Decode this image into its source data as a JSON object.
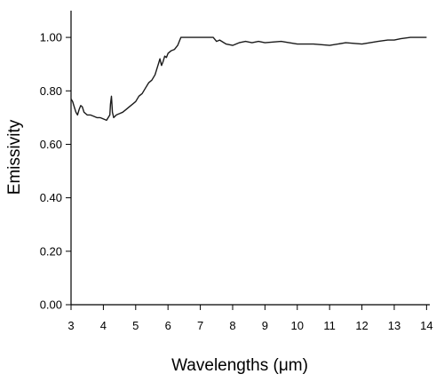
{
  "chart_data": {
    "type": "line",
    "title": "",
    "xlabel": "Wavelengths (μm)",
    "ylabel": "Emissivity",
    "xlim": [
      3,
      14.1
    ],
    "ylim": [
      0,
      1.1
    ],
    "x_ticks": [
      3,
      4,
      5,
      6,
      7,
      8,
      9,
      10,
      11,
      12,
      13,
      14
    ],
    "x_tick_labels": [
      "3",
      "4",
      "5",
      "6",
      "7",
      "8",
      "9",
      "10",
      "11",
      "12",
      "13",
      "14"
    ],
    "y_ticks": [
      0,
      0.2,
      0.4,
      0.6,
      0.8,
      1.0
    ],
    "y_tick_labels": [
      "0.00",
      "0.20",
      "0.40",
      "0.60",
      "0.80",
      "1.00"
    ],
    "grid": false,
    "legend": "none",
    "line_color": "#1a1a1a",
    "series": [
      {
        "x": [
          3.0,
          3.05,
          3.1,
          3.15,
          3.2,
          3.25,
          3.3,
          3.35,
          3.4,
          3.5,
          3.6,
          3.7,
          3.8,
          3.9,
          4.0,
          4.1,
          4.2,
          4.22,
          4.25,
          4.28,
          4.32,
          4.36,
          4.4,
          4.5,
          4.6,
          4.7,
          4.8,
          4.9,
          5.0,
          5.1,
          5.2,
          5.3,
          5.4,
          5.5,
          5.6,
          5.7,
          5.75,
          5.8,
          5.85,
          5.9,
          5.95,
          6.0,
          6.1,
          6.2,
          6.3,
          6.35,
          6.4,
          6.6,
          6.8,
          7.0,
          7.2,
          7.4,
          7.5,
          7.6,
          7.8,
          8.0,
          8.2,
          8.4,
          8.6,
          8.8,
          9.0,
          9.5,
          10.0,
          10.5,
          11.0,
          11.5,
          12.0,
          12.5,
          12.8,
          13.0,
          13.2,
          13.5,
          13.8,
          14.0
        ],
        "y": [
          0.77,
          0.76,
          0.74,
          0.72,
          0.71,
          0.73,
          0.745,
          0.74,
          0.72,
          0.71,
          0.71,
          0.705,
          0.7,
          0.7,
          0.695,
          0.69,
          0.71,
          0.75,
          0.78,
          0.72,
          0.7,
          0.705,
          0.71,
          0.715,
          0.72,
          0.73,
          0.74,
          0.75,
          0.76,
          0.78,
          0.79,
          0.81,
          0.83,
          0.84,
          0.86,
          0.9,
          0.92,
          0.895,
          0.91,
          0.93,
          0.925,
          0.94,
          0.95,
          0.955,
          0.97,
          0.985,
          1.0,
          1.0,
          1.0,
          1.0,
          1.0,
          1.0,
          0.985,
          0.99,
          0.975,
          0.97,
          0.98,
          0.985,
          0.98,
          0.985,
          0.98,
          0.985,
          0.975,
          0.975,
          0.97,
          0.98,
          0.975,
          0.985,
          0.99,
          0.99,
          0.995,
          1.0,
          1.0,
          1.0
        ]
      }
    ]
  }
}
